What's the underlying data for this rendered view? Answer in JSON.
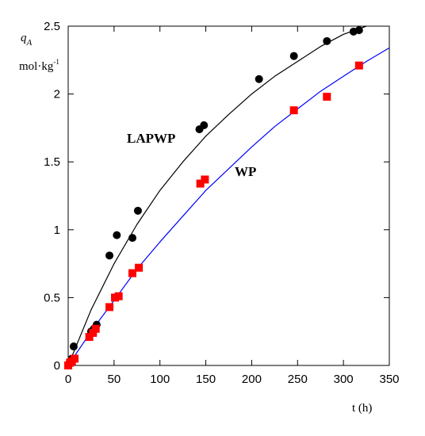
{
  "chart_data": {
    "type": "scatter",
    "xlabel": "t (h)",
    "ylabel_symbol": "q",
    "ylabel_subscript": "A",
    "ylabel_unit_main": "mol·kg",
    "ylabel_unit_exp": "-1",
    "xlim": [
      0,
      350
    ],
    "ylim": [
      0,
      2.5
    ],
    "x_ticks": [
      0,
      50,
      100,
      150,
      200,
      250,
      300,
      350
    ],
    "y_ticks": [
      0,
      0.5,
      1,
      1.5,
      2,
      2.5
    ],
    "x_tick_labels": [
      "0",
      "50",
      "100",
      "150",
      "200",
      "250",
      "300",
      "350"
    ],
    "y_tick_labels": [
      "0",
      "0.5",
      "1",
      "1.5",
      "2",
      "2.5"
    ],
    "grid": false,
    "series": [
      {
        "name": "LAPWP",
        "marker": "circle",
        "marker_color": "#000000",
        "fit_color": "#000000",
        "points": [
          {
            "x": 0,
            "y": 0.0
          },
          {
            "x": 2,
            "y": 0.03
          },
          {
            "x": 4,
            "y": 0.05
          },
          {
            "x": 6,
            "y": 0.14
          },
          {
            "x": 25,
            "y": 0.25
          },
          {
            "x": 28,
            "y": 0.27
          },
          {
            "x": 31,
            "y": 0.3
          },
          {
            "x": 45,
            "y": 0.81
          },
          {
            "x": 53,
            "y": 0.96
          },
          {
            "x": 70,
            "y": 0.94
          },
          {
            "x": 76,
            "y": 1.14
          },
          {
            "x": 143,
            "y": 1.74
          },
          {
            "x": 148,
            "y": 1.77
          },
          {
            "x": 208,
            "y": 2.11
          },
          {
            "x": 246,
            "y": 2.28
          },
          {
            "x": 282,
            "y": 2.39
          },
          {
            "x": 311,
            "y": 2.46
          },
          {
            "x": 317,
            "y": 2.47
          }
        ],
        "fit": {
          "x": [
            0,
            25,
            50,
            75,
            100,
            125,
            150,
            175,
            200,
            225,
            250,
            275,
            300,
            325
          ],
          "y": [
            0.0,
            0.41,
            0.75,
            1.04,
            1.29,
            1.5,
            1.69,
            1.85,
            2.0,
            2.13,
            2.24,
            2.35,
            2.44,
            2.5
          ]
        }
      },
      {
        "name": "WP",
        "marker": "square",
        "marker_color": "#ff0000",
        "fit_color": "#0000ff",
        "points": [
          {
            "x": 0,
            "y": 0.0
          },
          {
            "x": 2,
            "y": 0.02
          },
          {
            "x": 4,
            "y": 0.03
          },
          {
            "x": 7,
            "y": 0.05
          },
          {
            "x": 23,
            "y": 0.21
          },
          {
            "x": 27,
            "y": 0.24
          },
          {
            "x": 30,
            "y": 0.27
          },
          {
            "x": 45,
            "y": 0.43
          },
          {
            "x": 51,
            "y": 0.5
          },
          {
            "x": 55,
            "y": 0.51
          },
          {
            "x": 70,
            "y": 0.68
          },
          {
            "x": 77,
            "y": 0.72
          },
          {
            "x": 144,
            "y": 1.34
          },
          {
            "x": 149,
            "y": 1.37
          },
          {
            "x": 246,
            "y": 1.88
          },
          {
            "x": 282,
            "y": 1.98
          },
          {
            "x": 317,
            "y": 2.21
          }
        ],
        "fit": {
          "x": [
            0,
            25,
            50,
            75,
            100,
            125,
            150,
            175,
            200,
            225,
            250,
            275,
            300,
            325,
            350
          ],
          "y": [
            0.0,
            0.25,
            0.48,
            0.71,
            0.91,
            1.1,
            1.29,
            1.45,
            1.61,
            1.76,
            1.89,
            2.02,
            2.13,
            2.24,
            2.34
          ]
        }
      }
    ]
  }
}
